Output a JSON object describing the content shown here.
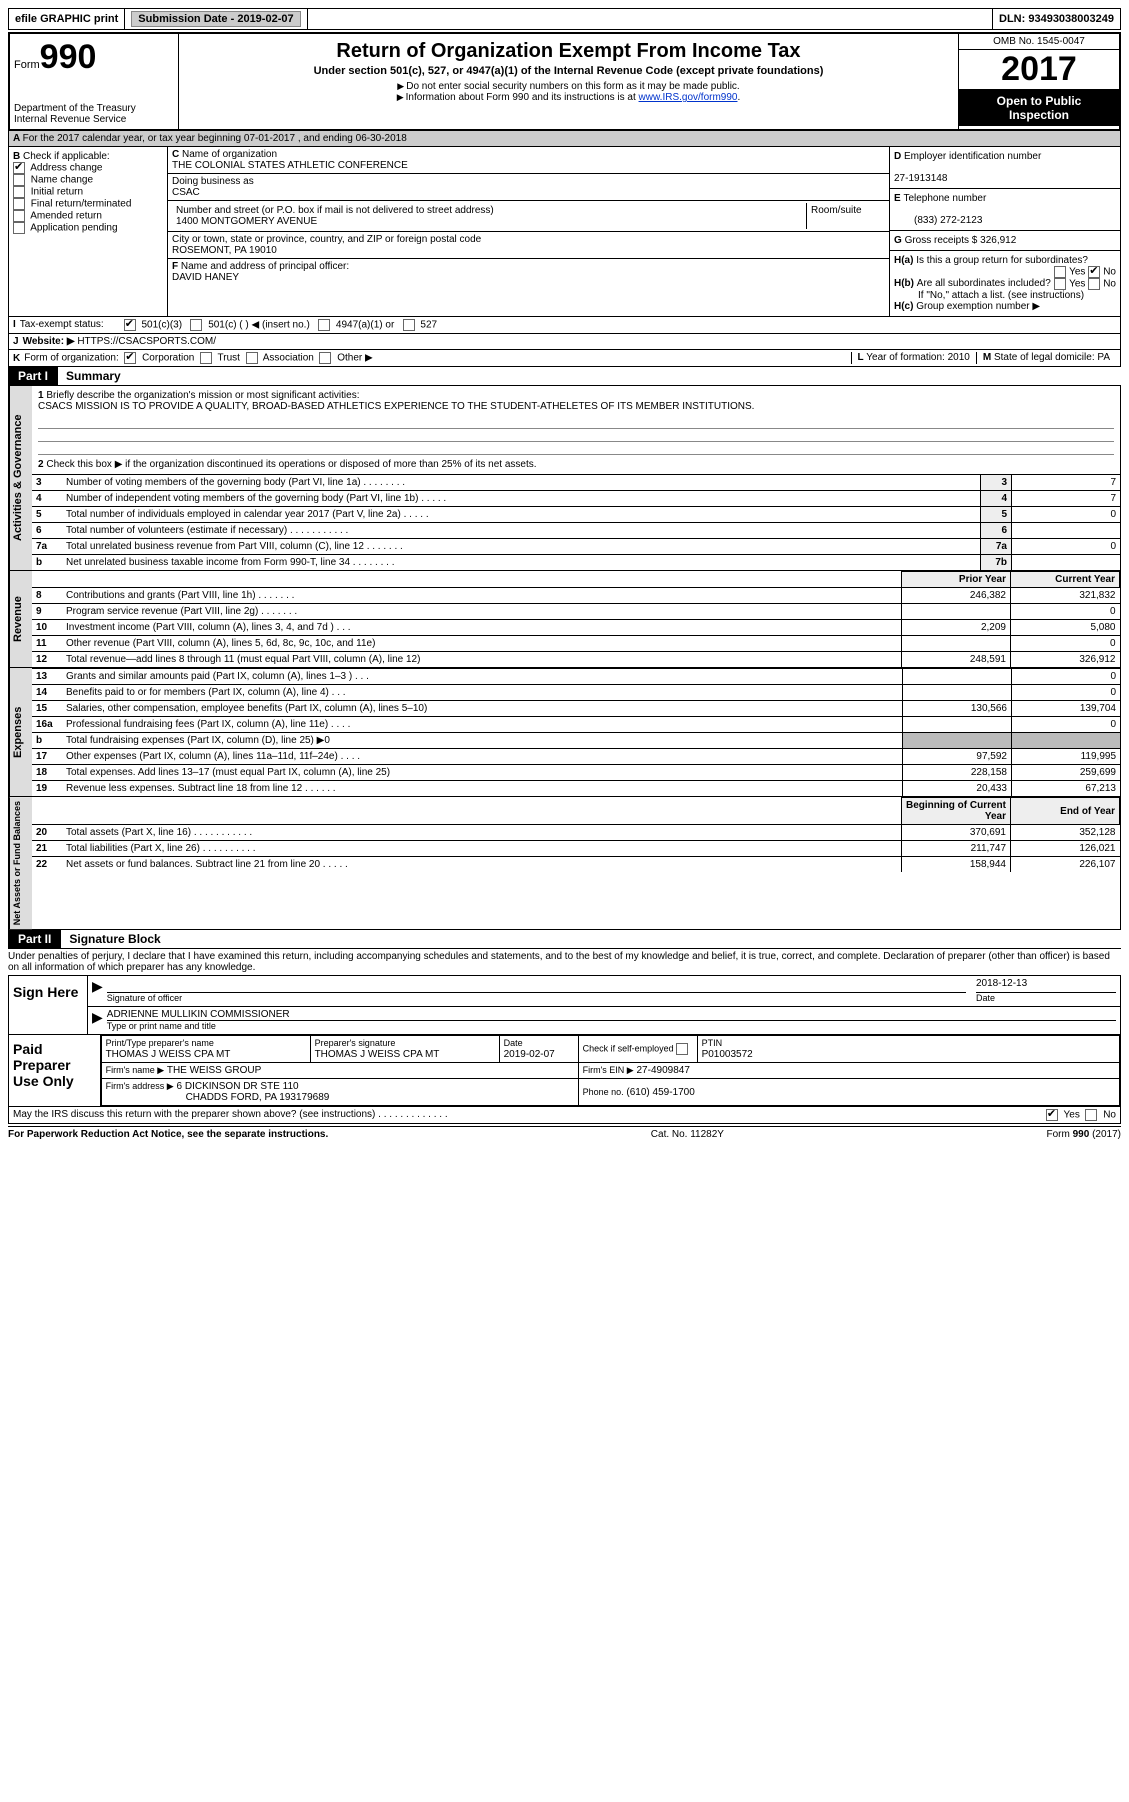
{
  "topbar": {
    "efile": "efile GRAPHIC print",
    "submission_label": "Submission Date - ",
    "submission_date": "2019-02-07",
    "dln_label": "DLN: ",
    "dln": "93493038003249"
  },
  "header": {
    "form_label": "Form",
    "form_no": "990",
    "dept": "Department of the Treasury",
    "irs": "Internal Revenue Service",
    "title": "Return of Organization Exempt From Income Tax",
    "subtitle": "Under section 501(c), 527, or 4947(a)(1) of the Internal Revenue Code (except private foundations)",
    "note1": "Do not enter social security numbers on this form as it may be made public.",
    "note2_pre": "Information about Form 990 and its instructions is at ",
    "note2_link": "www.IRS.gov/form990",
    "omb": "OMB No. 1545-0047",
    "year": "2017",
    "open1": "Open to Public",
    "open2": "Inspection"
  },
  "line_a": "For the 2017 calendar year, or tax year beginning 07-01-2017   , and ending 06-30-2018",
  "box_b": {
    "title": "Check if applicable:",
    "items": [
      "Address change",
      "Name change",
      "Initial return",
      "Final return/terminated",
      "Amended return",
      "Application pending"
    ],
    "checked_index": 0
  },
  "box_c": {
    "label_name": "Name of organization",
    "name": "THE COLONIAL STATES ATHLETIC CONFERENCE",
    "dba_label": "Doing business as",
    "dba": "CSAC",
    "addr_label": "Number and street (or P.O. box if mail is not delivered to street address)",
    "room_label": "Room/suite",
    "addr": "1400 MONTGOMERY AVENUE",
    "city_label": "City or town, state or province, country, and ZIP or foreign postal code",
    "city": "ROSEMONT, PA  19010",
    "officer_label": "Name and address of principal officer:",
    "officer": "DAVID HANEY"
  },
  "box_d": {
    "label": "Employer identification number",
    "value": "27-1913148"
  },
  "box_e": {
    "label": "Telephone number",
    "value": "(833) 272-2123"
  },
  "box_g": {
    "label": "Gross receipts $",
    "value": "326,912"
  },
  "box_h": {
    "a": "Is this a group return for subordinates?",
    "b": "Are all subordinates included?",
    "b_note": "If \"No,\" attach a list. (see instructions)",
    "c": "Group exemption number ▶",
    "yes": "Yes",
    "no": "No"
  },
  "line_i": {
    "label": "Tax-exempt status:",
    "opts": [
      "501(c)(3)",
      "501(c) (  ) ◀ (insert no.)",
      "4947(a)(1) or",
      "527"
    ]
  },
  "line_j": {
    "label": "Website: ▶",
    "value": "HTTPS://CSACSPORTS.COM/"
  },
  "line_k": {
    "label": "Form of organization:",
    "opts": [
      "Corporation",
      "Trust",
      "Association",
      "Other ▶"
    ]
  },
  "line_l": {
    "label": "Year of formation:",
    "value": "2010"
  },
  "line_m": {
    "label": "State of legal domicile:",
    "value": "PA"
  },
  "part1": {
    "label": "Part I",
    "title": "Summary",
    "vlabels": [
      "Activities & Governance",
      "Revenue",
      "Expenses",
      "Net Assets or Fund Balances"
    ],
    "l1": "Briefly describe the organization's mission or most significant activities:",
    "mission": "CSACS MISSION IS TO PROVIDE A QUALITY, BROAD-BASED ATHLETICS EXPERIENCE TO THE STUDENT-ATHELETES OF ITS MEMBER INSTITUTIONS.",
    "l2": "Check this box ▶      if the organization discontinued its operations or disposed of more than 25% of its net assets.",
    "rows_gov": [
      {
        "n": "3",
        "t": "Number of voting members of the governing body (Part VI, line 1a)  .   .   .   .   .   .   .   .",
        "b": "3",
        "v": "7"
      },
      {
        "n": "4",
        "t": "Number of independent voting members of the governing body (Part VI, line 1b)  .   .   .   .   .",
        "b": "4",
        "v": "7"
      },
      {
        "n": "5",
        "t": "Total number of individuals employed in calendar year 2017 (Part V, line 2a)  .   .   .   .   .",
        "b": "5",
        "v": "0"
      },
      {
        "n": "6",
        "t": "Total number of volunteers (estimate if necessary)  .   .   .   .   .   .   .   .   .   .   .",
        "b": "6",
        "v": ""
      },
      {
        "n": "7a",
        "t": "Total unrelated business revenue from Part VIII, column (C), line 12  .   .   .   .   .   .   .",
        "b": "7a",
        "v": "0"
      },
      {
        "n": "b",
        "t": "Net unrelated business taxable income from Form 990-T, line 34  .   .   .   .   .   .   .   .",
        "b": "7b",
        "v": ""
      }
    ],
    "col_prior": "Prior Year",
    "col_current": "Current Year",
    "rows_rev": [
      {
        "n": "8",
        "t": "Contributions and grants (Part VIII, line 1h)  .   .   .   .   .   .   .",
        "p": "246,382",
        "c": "321,832"
      },
      {
        "n": "9",
        "t": "Program service revenue (Part VIII, line 2g)  .   .   .   .   .   .   .",
        "p": "",
        "c": "0"
      },
      {
        "n": "10",
        "t": "Investment income (Part VIII, column (A), lines 3, 4, and 7d )  .   .   .",
        "p": "2,209",
        "c": "5,080"
      },
      {
        "n": "11",
        "t": "Other revenue (Part VIII, column (A), lines 5, 6d, 8c, 9c, 10c, and 11e)",
        "p": "",
        "c": "0"
      },
      {
        "n": "12",
        "t": "Total revenue—add lines 8 through 11 (must equal Part VIII, column (A), line 12)",
        "p": "248,591",
        "c": "326,912"
      }
    ],
    "rows_exp": [
      {
        "n": "13",
        "t": "Grants and similar amounts paid (Part IX, column (A), lines 1–3 )  .   .   .",
        "p": "",
        "c": "0"
      },
      {
        "n": "14",
        "t": "Benefits paid to or for members (Part IX, column (A), line 4)  .   .   .",
        "p": "",
        "c": "0"
      },
      {
        "n": "15",
        "t": "Salaries, other compensation, employee benefits (Part IX, column (A), lines 5–10)",
        "p": "130,566",
        "c": "139,704"
      },
      {
        "n": "16a",
        "t": "Professional fundraising fees (Part IX, column (A), line 11e)  .   .   .   .",
        "p": "",
        "c": "0"
      },
      {
        "n": "b",
        "t": "Total fundraising expenses (Part IX, column (D), line 25) ▶0",
        "p": "shade",
        "c": "shade"
      },
      {
        "n": "17",
        "t": "Other expenses (Part IX, column (A), lines 11a–11d, 11f–24e)  .   .   .   .",
        "p": "97,592",
        "c": "119,995"
      },
      {
        "n": "18",
        "t": "Total expenses. Add lines 13–17 (must equal Part IX, column (A), line 25)",
        "p": "228,158",
        "c": "259,699"
      },
      {
        "n": "19",
        "t": "Revenue less expenses. Subtract line 18 from line 12 .   .   .   .   .   .",
        "p": "20,433",
        "c": "67,213"
      }
    ],
    "col_begin": "Beginning of Current Year",
    "col_end": "End of Year",
    "rows_net": [
      {
        "n": "20",
        "t": "Total assets (Part X, line 16)  .   .   .   .   .   .   .   .   .   .   .",
        "p": "370,691",
        "c": "352,128"
      },
      {
        "n": "21",
        "t": "Total liabilities (Part X, line 26)  .   .   .   .   .   .   .   .   .   .",
        "p": "211,747",
        "c": "126,021"
      },
      {
        "n": "22",
        "t": "Net assets or fund balances. Subtract line 21 from line 20  .   .   .   .   .",
        "p": "158,944",
        "c": "226,107"
      }
    ]
  },
  "part2": {
    "label": "Part II",
    "title": "Signature Block",
    "declaration": "Under penalties of perjury, I declare that I have examined this return, including accompanying schedules and statements, and to the best of my knowledge and belief, it is true, correct, and complete. Declaration of preparer (other than officer) is based on all information of which preparer has any knowledge.",
    "sign_here": "Sign Here",
    "sig_officer": "Signature of officer",
    "date_label": "Date",
    "sig_date": "2018-12-13",
    "name_title": "ADRIENNE MULLIKIN COMMISSIONER",
    "type_name": "Type or print name and title",
    "paid": "Paid Preparer Use Only",
    "prep_name_label": "Print/Type preparer's name",
    "prep_name": "THOMAS J WEISS CPA MT",
    "prep_sig_label": "Preparer's signature",
    "prep_sig": "THOMAS J WEISS CPA MT",
    "prep_date_label": "Date",
    "prep_date": "2019-02-07",
    "check_self": "Check       if self-employed",
    "ptin_label": "PTIN",
    "ptin": "P01003572",
    "firm_name_label": "Firm's name     ▶",
    "firm_name": "THE WEISS GROUP",
    "firm_ein_label": "Firm's EIN ▶",
    "firm_ein": "27-4909847",
    "firm_addr_label": "Firm's address ▶",
    "firm_addr": "6 DICKINSON DR STE 110",
    "firm_city": "CHADDS FORD, PA  193179689",
    "phone_label": "Phone no.",
    "phone": "(610) 459-1700",
    "discuss": "May the IRS discuss this return with the preparer shown above? (see instructions)  .   .   .   .   .   .   .   .   .   .   .   .   ."
  },
  "footer": {
    "left": "For Paperwork Reduction Act Notice, see the separate instructions.",
    "mid": "Cat. No. 11282Y",
    "right": "Form 990 (2017)"
  }
}
